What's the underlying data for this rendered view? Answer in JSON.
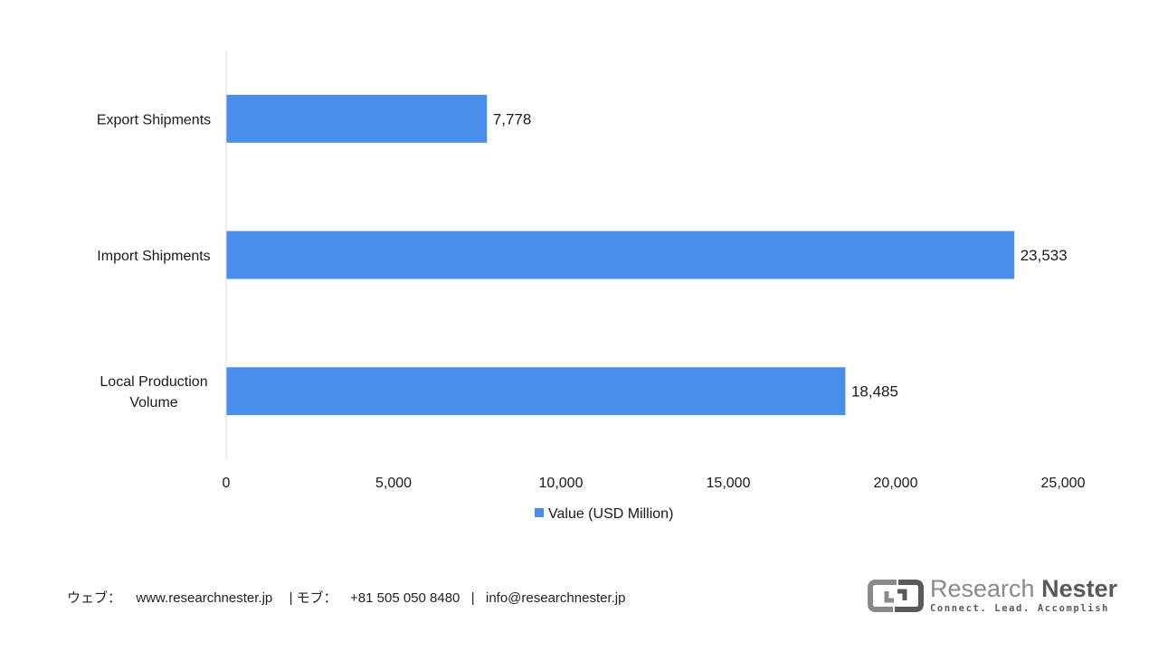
{
  "chart_data": {
    "type": "bar",
    "orientation": "horizontal",
    "categories": [
      "Export Shipments",
      "Import Shipments",
      "Local Production Volume"
    ],
    "category_lines": [
      [
        "Export Shipments"
      ],
      [
        "Import Shipments"
      ],
      [
        "Local Production",
        "Volume"
      ]
    ],
    "series": [
      {
        "name": "Value (USD Million)",
        "values": [
          7778,
          23533,
          18485
        ],
        "labels": [
          "7,778",
          "23,533",
          "18,485"
        ],
        "color": "#4a8eec"
      }
    ],
    "xlim": [
      0,
      25000
    ],
    "xticks": [
      0,
      5000,
      10000,
      15000,
      20000,
      25000
    ],
    "xtick_labels": [
      "0",
      "5,000",
      "10,000",
      "15,000",
      "20,000",
      "25,000"
    ],
    "title": "",
    "xlabel": "",
    "ylabel": "",
    "grid": false,
    "legend_position": "bottom"
  },
  "footer": {
    "web_label": "ウェブ：",
    "web_value": "www.researchnester.jp",
    "phone_label": "| モブ：",
    "phone_value": "+81 505 050 8480",
    "separator": "|",
    "email": "info@researchnester.jp"
  },
  "logo": {
    "name_part1": "Research",
    "name_part2": "Nester",
    "tagline": "Connect. Lead. Accomplish"
  }
}
